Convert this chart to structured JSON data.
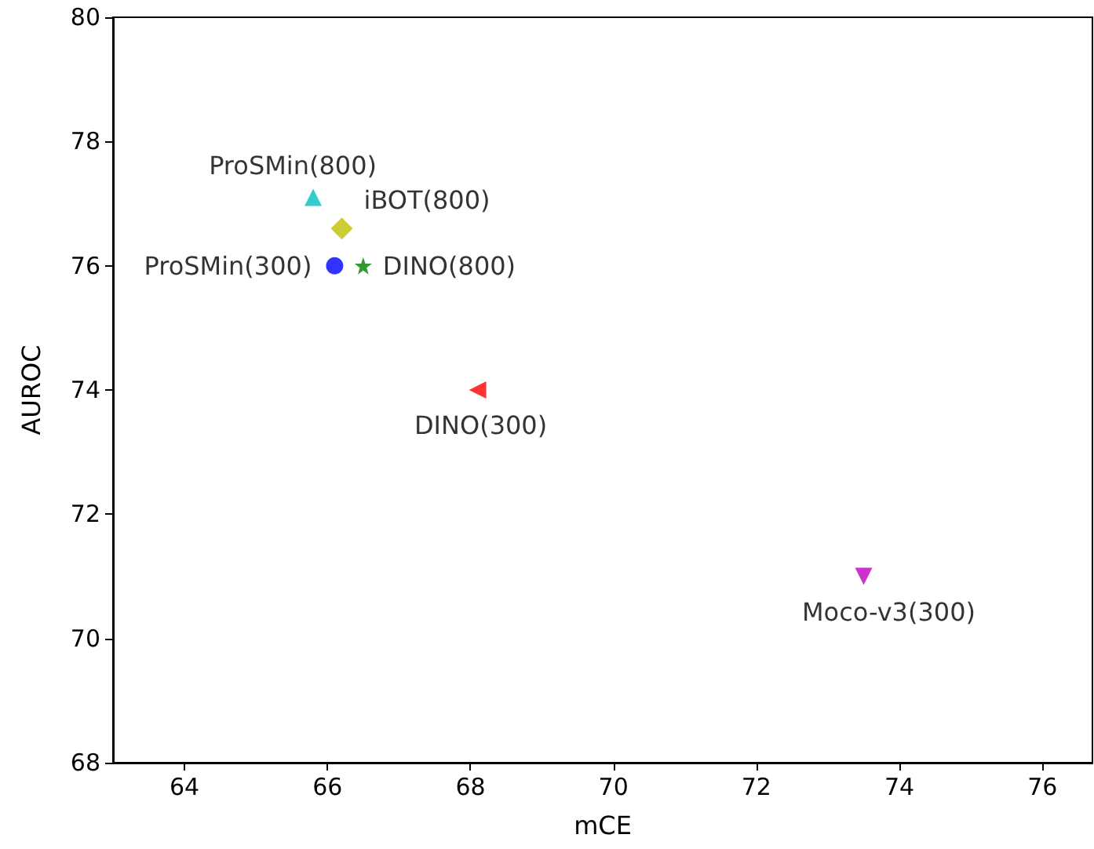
{
  "chart_data": {
    "type": "scatter",
    "xlabel": "mCE",
    "ylabel": "AUROC",
    "xlim": [
      63,
      76.7
    ],
    "xticks": [
      64,
      66,
      68,
      70,
      72,
      74,
      76
    ],
    "ylim": [
      68,
      80
    ],
    "yticks": [
      68,
      70,
      72,
      74,
      76,
      78,
      80
    ],
    "grid": false,
    "legend": false,
    "series": [
      {
        "name": "ProSMin(800)",
        "color": "#00bfbf",
        "marker": "triangle",
        "x": [
          65.8
        ],
        "values": [
          77.1
        ]
      },
      {
        "name": "iBOT(800)",
        "color": "#bfbf00",
        "marker": "diamond",
        "x": [
          66.2
        ],
        "values": [
          76.6
        ]
      },
      {
        "name": "ProSMin(300)",
        "color": "#0000ff",
        "marker": "circle",
        "x": [
          66.1
        ],
        "values": [
          76.0
        ]
      },
      {
        "name": "DINO(800)",
        "color": "#008000",
        "marker": "star",
        "x": [
          66.5
        ],
        "values": [
          76.0
        ]
      },
      {
        "name": "DINO(300)",
        "color": "#ff0000",
        "marker": "triangle-left",
        "x": [
          68.1
        ],
        "values": [
          74.0
        ]
      },
      {
        "name": "Moco-v3(300)",
        "color": "#bf00bf",
        "marker": "triangle-down",
        "x": [
          73.5
        ],
        "values": [
          71.0
        ]
      }
    ]
  }
}
